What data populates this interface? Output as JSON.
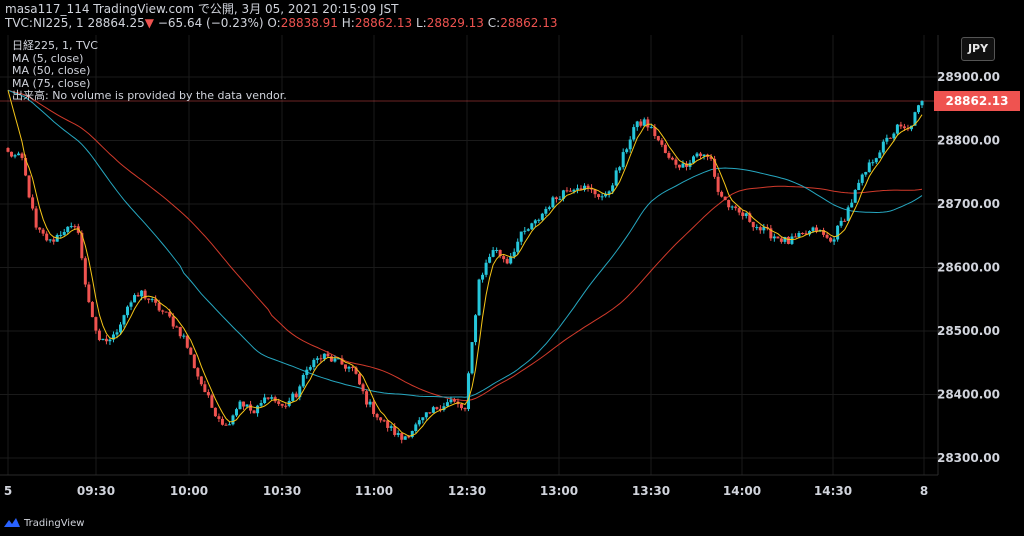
{
  "header": {
    "line1": "masa117_114 TradingView.com で公開, 3月 05, 2021 20:15:09 JST",
    "symbol": "TVC:NI225, 1",
    "price": "28864.25",
    "change": "−65.64 (−0.23%)",
    "o_label": "O:",
    "o_value": "28838.91",
    "h_label": "H:",
    "h_value": "28862.13",
    "l_label": "L:",
    "l_value": "28829.13",
    "c_label": "C:",
    "c_value": "28862.13"
  },
  "legend": {
    "title": "日経225, 1, TVC",
    "ma5": "MA (5, close)",
    "ma50": "MA (50, close)",
    "ma75": "MA (75, close)",
    "volume": "出来高: No volume is provided by the data vendor."
  },
  "currency_button": "JPY",
  "last_price_tag": "28862.13",
  "footer": {
    "brand": "TradingView"
  },
  "colors": {
    "up": "#26c6da",
    "down": "#ef5350",
    "ma5": "#f5c518",
    "ma50": "#26a7c0",
    "ma75": "#d13a2b",
    "grid": "#1a1a1a"
  },
  "chart_data": {
    "type": "candlestick",
    "ylim": [
      28290,
      28965
    ],
    "y_ticks": [
      28300,
      28400,
      28500,
      28600,
      28700,
      28800,
      28900
    ],
    "y_tick_labels": [
      "28300.00",
      "28400.00",
      "28500.00",
      "28600.00",
      "28700.00",
      "28800.00",
      "28900.00"
    ],
    "x_ticks": [
      "5",
      "09:30",
      "10:00",
      "10:30",
      "11:00",
      "12:30",
      "13:00",
      "13:30",
      "14:00",
      "14:30",
      "8"
    ],
    "last_price": 28862.13,
    "price_path": [
      [
        0,
        28780
      ],
      [
        4,
        28770
      ],
      [
        8,
        28660
      ],
      [
        12,
        28640
      ],
      [
        16,
        28660
      ],
      [
        20,
        28660
      ],
      [
        22,
        28570
      ],
      [
        26,
        28480
      ],
      [
        30,
        28490
      ],
      [
        34,
        28540
      ],
      [
        38,
        28560
      ],
      [
        42,
        28540
      ],
      [
        46,
        28520
      ],
      [
        50,
        28490
      ],
      [
        54,
        28430
      ],
      [
        58,
        28380
      ],
      [
        62,
        28350
      ],
      [
        66,
        28390
      ],
      [
        70,
        28370
      ],
      [
        74,
        28400
      ],
      [
        78,
        28380
      ],
      [
        82,
        28400
      ],
      [
        86,
        28450
      ],
      [
        90,
        28460
      ],
      [
        94,
        28450
      ],
      [
        98,
        28440
      ],
      [
        102,
        28390
      ],
      [
        106,
        28360
      ],
      [
        110,
        28340
      ],
      [
        112,
        28330
      ],
      [
        114,
        28340
      ],
      [
        118,
        28360
      ],
      [
        122,
        28380
      ],
      [
        126,
        28390
      ],
      [
        130,
        28375
      ],
      [
        132,
        28480
      ],
      [
        134,
        28580
      ],
      [
        138,
        28630
      ],
      [
        142,
        28610
      ],
      [
        146,
        28650
      ],
      [
        150,
        28670
      ],
      [
        154,
        28700
      ],
      [
        158,
        28720
      ],
      [
        162,
        28730
      ],
      [
        166,
        28720
      ],
      [
        170,
        28710
      ],
      [
        174,
        28760
      ],
      [
        178,
        28820
      ],
      [
        181,
        28830
      ],
      [
        184,
        28810
      ],
      [
        188,
        28770
      ],
      [
        192,
        28760
      ],
      [
        196,
        28780
      ],
      [
        200,
        28770
      ],
      [
        202,
        28720
      ],
      [
        206,
        28690
      ],
      [
        210,
        28680
      ],
      [
        214,
        28660
      ],
      [
        218,
        28650
      ],
      [
        222,
        28640
      ],
      [
        226,
        28650
      ],
      [
        230,
        28660
      ],
      [
        234,
        28640
      ],
      [
        238,
        28680
      ],
      [
        242,
        28730
      ],
      [
        246,
        28770
      ],
      [
        250,
        28800
      ],
      [
        253,
        28820
      ],
      [
        256,
        28815
      ],
      [
        258,
        28840
      ],
      [
        260,
        28862
      ]
    ]
  }
}
